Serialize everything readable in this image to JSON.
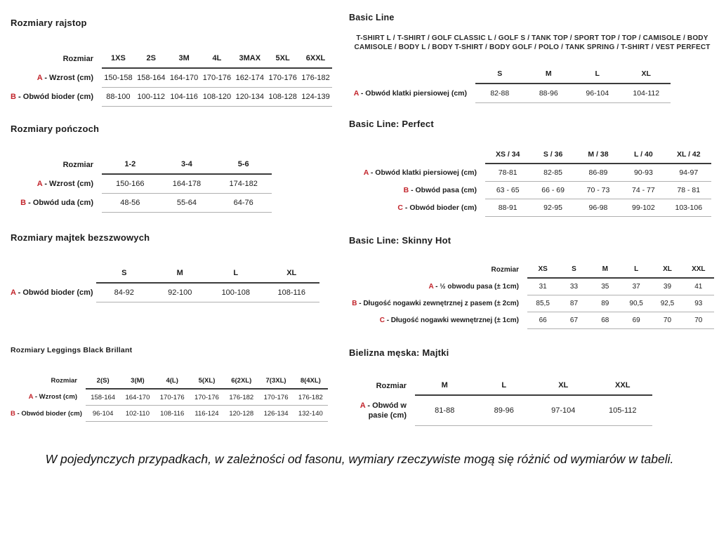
{
  "accent_color": "#c2242b",
  "text_color": "#1c1c1c",
  "left": {
    "sections": [
      {
        "title": "Rozmiary rajstop",
        "table": {
          "corner_label": "Rozmiar",
          "columns": [
            "1XS",
            "2S",
            "3M",
            "4L",
            "3MAX",
            "5XL",
            "6XXL"
          ],
          "rows": [
            {
              "letter": "A",
              "label": "- Wzrost (cm)",
              "values": [
                "150-158",
                "158-164",
                "164-170",
                "170-176",
                "162-174",
                "170-176",
                "176-182"
              ]
            },
            {
              "letter": "B",
              "label": "- Obwód bioder (cm)",
              "values": [
                "88-100",
                "100-112",
                "104-116",
                "108-120",
                "120-134",
                "108-128",
                "124-139"
              ]
            }
          ]
        }
      },
      {
        "title": "Rozmiary pończoch",
        "table": {
          "corner_label": "Rozmiar",
          "columns": [
            "1-2",
            "3-4",
            "5-6"
          ],
          "rows": [
            {
              "letter": "A",
              "label": "- Wzrost (cm)",
              "values": [
                "150-166",
                "164-178",
                "174-182"
              ]
            },
            {
              "letter": "B",
              "label": "- Obwód uda (cm)",
              "values": [
                "48-56",
                "55-64",
                "64-76"
              ]
            }
          ]
        }
      },
      {
        "title": "Rozmiary majtek bezszwowych",
        "table": {
          "corner_label": "",
          "columns": [
            "S",
            "M",
            "L",
            "XL"
          ],
          "rows": [
            {
              "letter": "A",
              "label": "- Obwód bioder (cm)",
              "values": [
                "84-92",
                "92-100",
                "100-108",
                "108-116"
              ]
            }
          ]
        }
      },
      {
        "title": "Rozmiary Leggings Black Brillant",
        "table": {
          "corner_label": "Rozmiar",
          "columns": [
            "2(S)",
            "3(M)",
            "4(L)",
            "5(XL)",
            "6(2XL)",
            "7(3XL)",
            "8(4XL)"
          ],
          "rows": [
            {
              "letter": "A",
              "label": "- Wzrost (cm)",
              "values": [
                "158-164",
                "164-170",
                "170-176",
                "170-176",
                "176-182",
                "170-176",
                "176-182"
              ]
            },
            {
              "letter": "B",
              "label": "- Obwód bioder (cm)",
              "values": [
                "96-104",
                "102-110",
                "108-116",
                "116-124",
                "120-128",
                "126-134",
                "132-140"
              ]
            }
          ]
        }
      }
    ]
  },
  "right": {
    "sections": [
      {
        "title": "Basic Line",
        "subtitle": "T-SHIRT L / T-SHIRT / GOLF CLASSIC L / GOLF S / TANK TOP / SPORT TOP / TOP / CAMISOLE / BODY CAMISOLE / BODY L / BODY T-SHIRT / BODY GOLF / POLO / TANK SPRING / T-SHIRT / VEST PERFECT",
        "table": {
          "corner_label": "",
          "columns": [
            "S",
            "M",
            "L",
            "XL"
          ],
          "rows": [
            {
              "letter": "A",
              "label": "- Obwód klatki piersiowej (cm)",
              "values": [
                "82-88",
                "88-96",
                "96-104",
                "104-112"
              ]
            }
          ]
        }
      },
      {
        "title": "Basic Line: Perfect",
        "table": {
          "corner_label": "",
          "columns": [
            "XS / 34",
            "S / 36",
            "M / 38",
            "L / 40",
            "XL / 42"
          ],
          "rows": [
            {
              "letter": "A",
              "label": "- Obwód klatki piersiowej (cm)",
              "values": [
                "78-81",
                "82-85",
                "86-89",
                "90-93",
                "94-97"
              ]
            },
            {
              "letter": "B",
              "label": "- Obwód pasa (cm)",
              "values": [
                "63 - 65",
                "66 - 69",
                "70 - 73",
                "74 - 77",
                "78 - 81"
              ]
            },
            {
              "letter": "C",
              "label": "- Obwód bioder (cm)",
              "values": [
                "88-91",
                "92-95",
                "96-98",
                "99-102",
                "103-106"
              ]
            }
          ]
        }
      },
      {
        "title": "Basic Line: Skinny Hot",
        "table": {
          "corner_label": "Rozmiar",
          "columns": [
            "XS",
            "S",
            "M",
            "L",
            "XL",
            "XXL"
          ],
          "rows": [
            {
              "letter": "A",
              "label": "- ½ obwodu pasa (± 1cm)",
              "values": [
                "31",
                "33",
                "35",
                "37",
                "39",
                "41"
              ]
            },
            {
              "letter": "B",
              "label": "- Długość nogawki zewnętrznej z pasem (± 2cm)",
              "values": [
                "85,5",
                "87",
                "89",
                "90,5",
                "92,5",
                "93"
              ]
            },
            {
              "letter": "C",
              "label": "- Długość nogawki wewnętrznej (± 1cm)",
              "values": [
                "66",
                "67",
                "68",
                "69",
                "70",
                "70"
              ]
            }
          ]
        }
      },
      {
        "title": "Bielizna męska: Majtki",
        "table": {
          "corner_label": "Rozmiar",
          "columns": [
            "M",
            "L",
            "XL",
            "XXL"
          ],
          "rows": [
            {
              "letter": "A",
              "label": "- Obwód w pasie (cm)",
              "values": [
                "81-88",
                "89-96",
                "97-104",
                "105-112"
              ]
            }
          ]
        }
      }
    ]
  },
  "footer": {
    "note": "W pojedynczych przypadkach, w zależności od fasonu, wymiary rzeczywiste mogą się różnić od wymiarów w tabeli."
  }
}
